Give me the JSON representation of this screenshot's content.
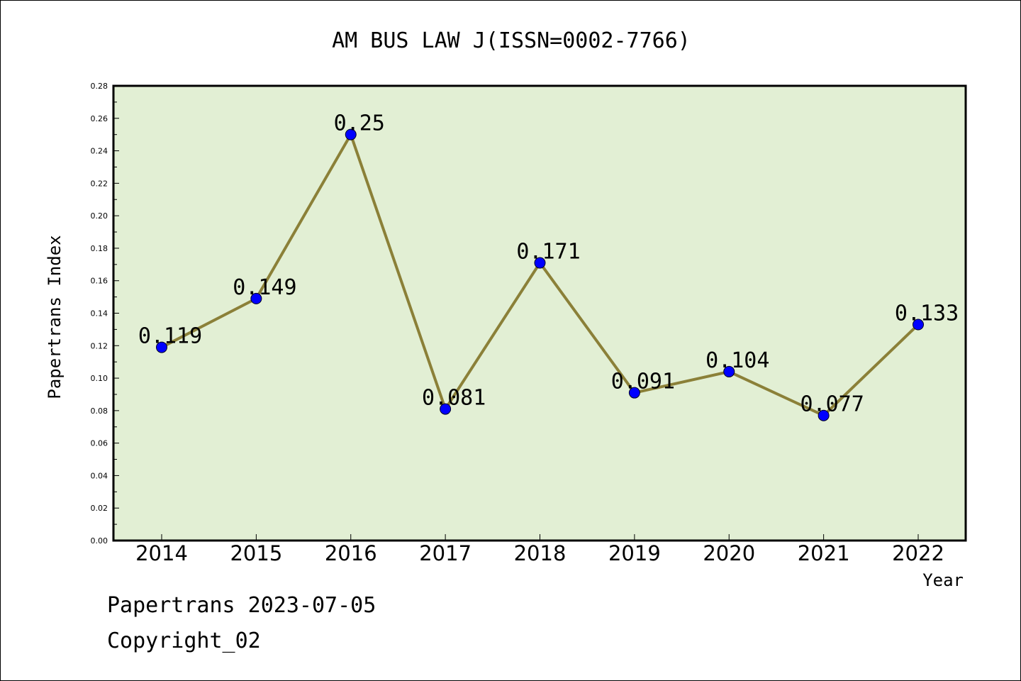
{
  "chart_data": {
    "type": "line",
    "title": "AM BUS LAW J(ISSN=0002-7766)",
    "xlabel": "Year",
    "ylabel": "Papertrans Index",
    "categories": [
      "2014",
      "2015",
      "2016",
      "2017",
      "2018",
      "2019",
      "2020",
      "2021",
      "2022"
    ],
    "values": [
      0.119,
      0.149,
      0.25,
      0.081,
      0.171,
      0.091,
      0.104,
      0.077,
      0.133
    ],
    "data_labels": [
      "0.119",
      "0.149",
      "0.25",
      "0.081",
      "0.171",
      "0.091",
      "0.104",
      "0.077",
      "0.133"
    ],
    "yticks": [
      "0.00",
      "0.02",
      "0.04",
      "0.06",
      "0.08",
      "0.10",
      "0.12",
      "0.14",
      "0.16",
      "0.18",
      "0.20",
      "0.22",
      "0.24",
      "0.26",
      "0.28"
    ],
    "ylim": [
      0,
      0.28
    ],
    "grid": false,
    "colors": {
      "plot_background": "#e2efd4",
      "line": "#8b8038",
      "marker": "#0000ff"
    }
  },
  "footer": {
    "line1": "Papertrans 2023-07-05",
    "line2": "Copyright_02"
  }
}
